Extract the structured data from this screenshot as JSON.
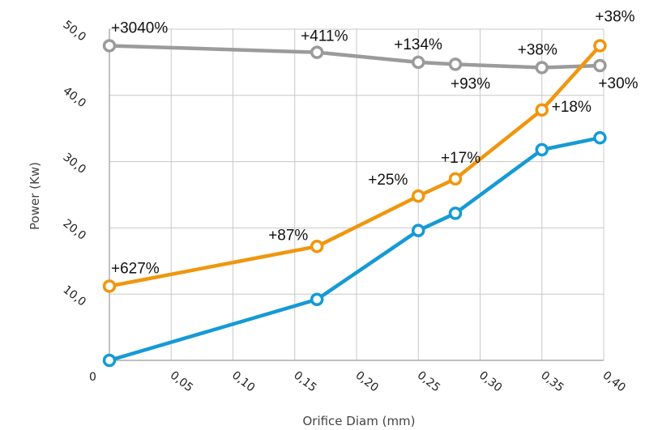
{
  "chart_data": {
    "type": "line",
    "xlabel": "Orifice Diam (mm)",
    "ylabel": "Power (Kw)",
    "xlim": [
      0.0,
      0.4
    ],
    "ylim": [
      0,
      50
    ],
    "origin_label": "0",
    "x_tick_labels": [
      {
        "value": 0.05,
        "label": "0,05"
      },
      {
        "value": 0.1,
        "label": "0,10"
      },
      {
        "value": 0.15,
        "label": "0,15"
      },
      {
        "value": 0.2,
        "label": "0,20"
      },
      {
        "value": 0.25,
        "label": "0,25"
      },
      {
        "value": 0.3,
        "label": "0,30"
      },
      {
        "value": 0.35,
        "label": "0,35"
      },
      {
        "value": 0.4,
        "label": "0,40"
      }
    ],
    "x_grid_values": [
      0.05,
      0.1,
      0.15,
      0.2,
      0.25,
      0.3,
      0.35,
      0.4
    ],
    "y_tick_labels": [
      {
        "value": 10,
        "label": "10,0"
      },
      {
        "value": 20,
        "label": "20,0"
      },
      {
        "value": 30,
        "label": "30,0"
      },
      {
        "value": 40,
        "label": "40,0"
      },
      {
        "value": 50,
        "label": "50,0"
      }
    ],
    "y_grid_values": [
      10,
      20,
      30,
      40,
      50
    ],
    "grid": true,
    "series": [
      {
        "color": "#9b9b9b",
        "points": [
          {
            "x": 0.0,
            "y": 47.5,
            "label": "+3040%"
          },
          {
            "x": 0.168,
            "y": 46.5,
            "label": "+411%"
          },
          {
            "x": 0.25,
            "y": 45.0,
            "label": "+134%"
          },
          {
            "x": 0.28,
            "y": 44.7,
            "label": "+93%"
          },
          {
            "x": 0.35,
            "y": 44.2,
            "label": "+38%"
          },
          {
            "x": 0.397,
            "y": 44.5,
            "label": "+30%"
          }
        ]
      },
      {
        "color": "#f0960e",
        "points": [
          {
            "x": 0.0,
            "y": 11.2,
            "label": "+627%"
          },
          {
            "x": 0.168,
            "y": 17.2,
            "label": "+87%"
          },
          {
            "x": 0.25,
            "y": 24.8,
            "label": "+25%"
          },
          {
            "x": 0.28,
            "y": 27.4,
            "label": "+17%"
          },
          {
            "x": 0.35,
            "y": 37.8,
            "label": "+18%"
          },
          {
            "x": 0.397,
            "y": 47.5,
            "label": "+38%"
          }
        ]
      },
      {
        "color": "#159ad6",
        "points": [
          {
            "x": 0.0,
            "y": 0.0
          },
          {
            "x": 0.168,
            "y": 9.2
          },
          {
            "x": 0.25,
            "y": 19.6
          },
          {
            "x": 0.28,
            "y": 22.2
          },
          {
            "x": 0.35,
            "y": 31.8
          },
          {
            "x": 0.397,
            "y": 33.6
          }
        ]
      }
    ]
  }
}
